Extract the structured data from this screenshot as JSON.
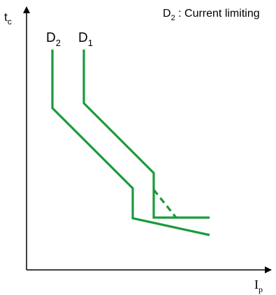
{
  "title": {
    "main": "D",
    "sub": "2",
    "rest": " : Current limiting"
  },
  "y_axis": {
    "main": "t",
    "sub": "c"
  },
  "x_axis": {
    "main": "I",
    "sub": "p"
  },
  "curves": [
    {
      "main": "D",
      "sub": "2"
    },
    {
      "main": "D",
      "sub": "1"
    }
  ],
  "colors": {
    "curve": "#1a9a3c",
    "axis": "#000000"
  }
}
